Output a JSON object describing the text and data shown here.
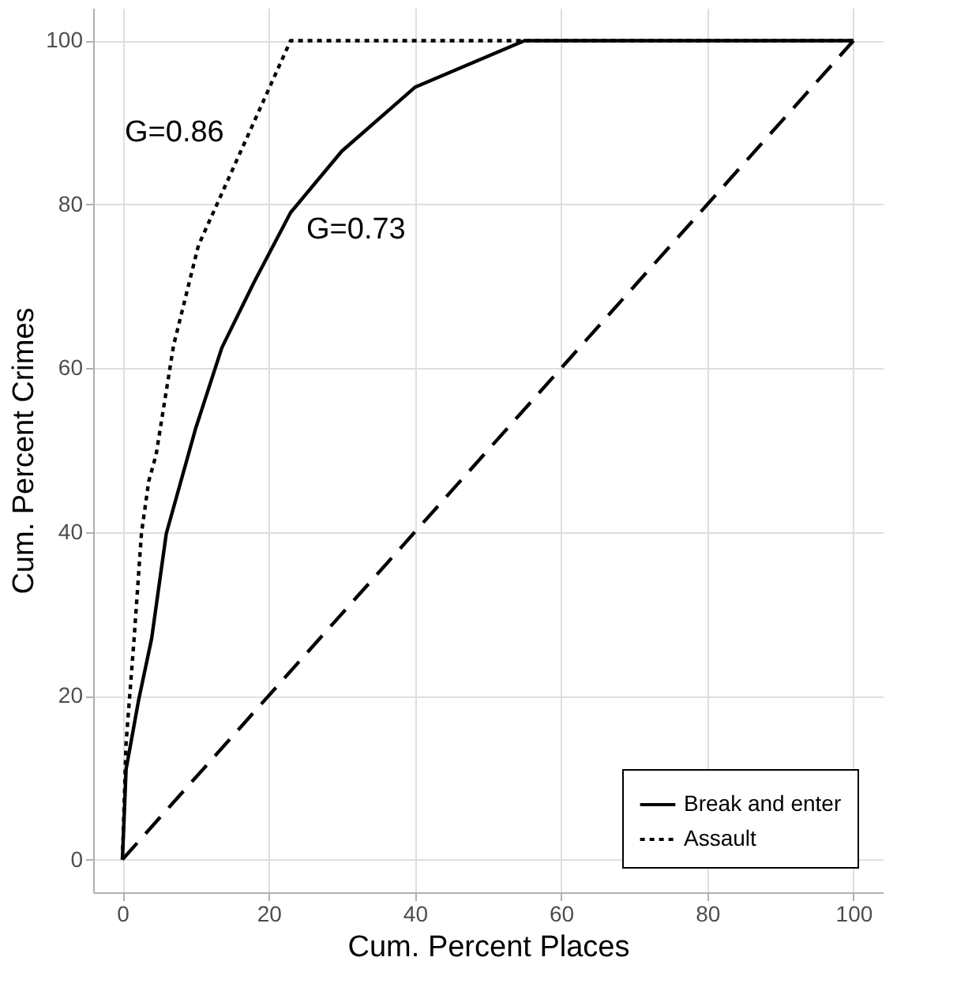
{
  "chart_data": {
    "type": "line",
    "xlabel": "Cum. Percent Places",
    "ylabel": "Cum. Percent Crimes",
    "xlim": [
      -4,
      104
    ],
    "ylim": [
      -4,
      104
    ],
    "xticks": [
      0,
      20,
      40,
      60,
      80,
      100
    ],
    "yticks": [
      0,
      20,
      40,
      60,
      80,
      100
    ],
    "grid": true,
    "legend": "bottom right",
    "marker": "none",
    "series": [
      {
        "name": "Break and enter",
        "color": "#000000",
        "line_style": "solid",
        "x": [
          0,
          0.5,
          2.2,
          4,
          6,
          10,
          13.6,
          18,
          23,
          30,
          40,
          55,
          100
        ],
        "values": [
          0,
          11,
          19.4,
          27,
          39.8,
          52.6,
          62.5,
          70.5,
          79,
          86.5,
          94.3,
          100,
          100
        ]
      },
      {
        "name": "Assault",
        "color": "#000000",
        "line_style": "dotted",
        "x": [
          0,
          0.5,
          1.6,
          2.6,
          3.6,
          4.6,
          7,
          10.4,
          23,
          100
        ],
        "values": [
          0,
          14.2,
          27,
          39.8,
          46.2,
          49.4,
          62.8,
          75,
          100,
          100
        ]
      },
      {
        "color": "#000000",
        "line_style": "dashed",
        "x": [
          0,
          100
        ],
        "values": [
          0,
          100
        ]
      }
    ],
    "annotations": [
      "G=0.86",
      "G=0.73"
    ]
  }
}
